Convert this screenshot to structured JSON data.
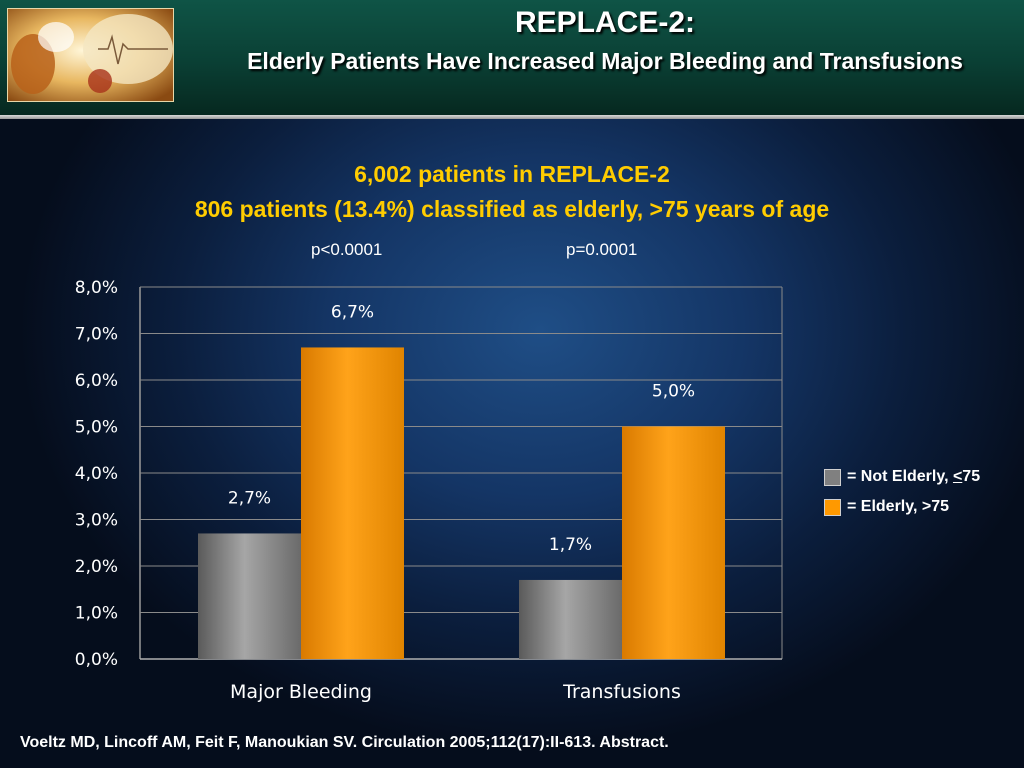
{
  "slide": {
    "title": "REPLACE-2:",
    "subtitle": "Elderly Patients Have Increased Major Bleeding and Transfusions",
    "line1": "6,002 patients in REPLACE-2",
    "line2": "806 patients (13.4%) classified as elderly, >75 years of age",
    "pvalues": [
      "p<0.0001",
      "p=0.0001"
    ],
    "legend": [
      {
        "prefix": "= Not Elderly, ",
        "underlined": "<",
        "suffix": "75",
        "color": "#808080"
      },
      {
        "prefix": "= Elderly, >75",
        "underlined": "",
        "suffix": "",
        "color": "#ff9900"
      }
    ],
    "footer": "Voeltz MD, Lincoff AM, Feit F, Manoukian SV. Circulation 2005;112(17):II-613.  Abstract.",
    "logo_icon": "medical-photo-icon"
  },
  "chart_data": {
    "type": "bar",
    "categories": [
      "Major Bleeding",
      "Transfusions"
    ],
    "series": [
      {
        "name": "= Not Elderly, <75",
        "values": [
          2.7,
          1.7
        ],
        "labels": [
          "2,7%",
          "1,7%"
        ],
        "color": "#808080"
      },
      {
        "name": "= Elderly, >75",
        "values": [
          6.7,
          5.0
        ],
        "labels": [
          "6,7%",
          "5,0%"
        ],
        "color": "#ff9900"
      }
    ],
    "yticks": [
      "0,0%",
      "1,0%",
      "2,0%",
      "3,0%",
      "4,0%",
      "5,0%",
      "6,0%",
      "7,0%",
      "8,0%"
    ],
    "ylim": [
      0,
      8
    ],
    "grid": true,
    "legend_position": "right"
  }
}
